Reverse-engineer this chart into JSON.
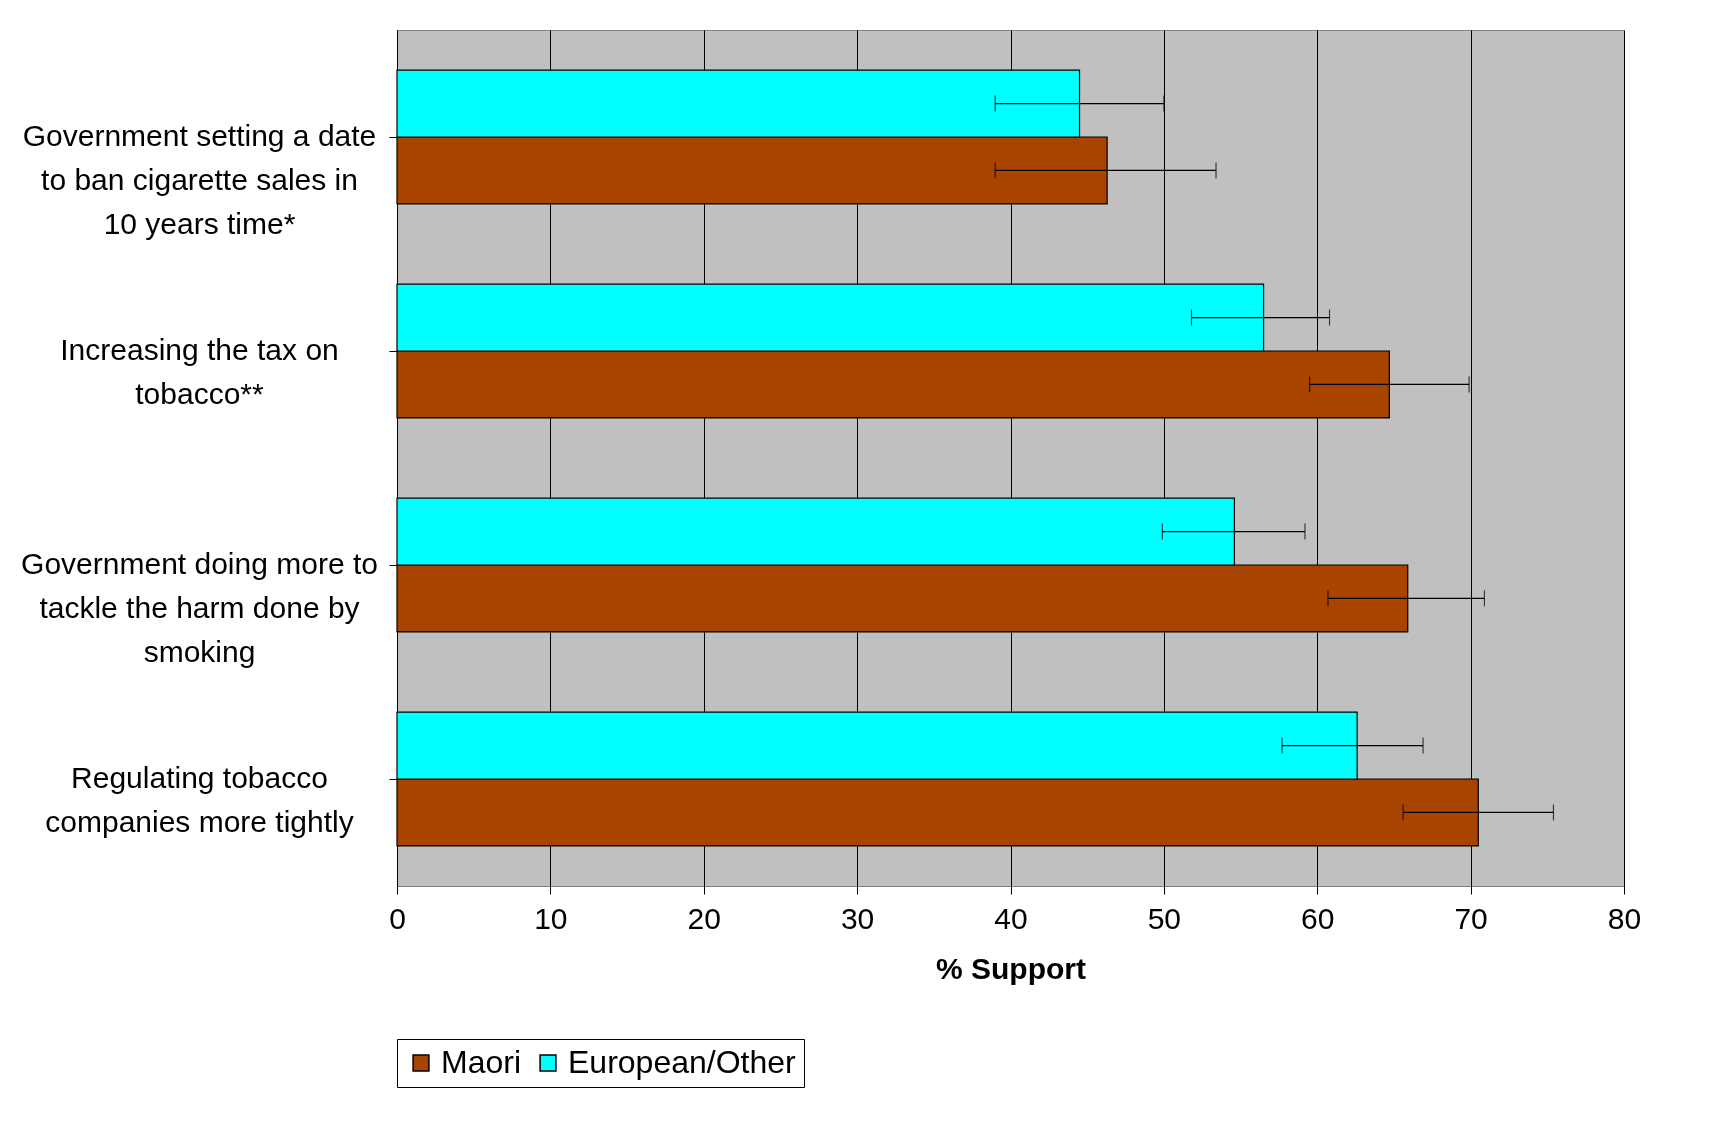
{
  "chart_data": {
    "type": "bar",
    "orientation": "horizontal",
    "xlabel": "% Support",
    "categories": [
      "Government setting a date to ban cigarette sales in 10 years time*",
      "Increasing the tax on tobacco**",
      "Government doing more to tackle the harm done by smoking",
      "Regulating tobacco companies more tightly"
    ],
    "series": [
      {
        "name": "Maori",
        "color": "#a94400",
        "values": [
          46.3,
          64.7,
          65.9,
          70.5
        ],
        "errors": [
          [
            39.0,
            53.4
          ],
          [
            59.5,
            69.9
          ],
          [
            60.7,
            70.9
          ],
          [
            65.6,
            75.4
          ]
        ]
      },
      {
        "name": "European/Other",
        "color": "#00ffff",
        "values": [
          44.5,
          56.5,
          54.6,
          62.6
        ],
        "errors": [
          [
            39.0,
            50.0
          ],
          [
            51.8,
            60.8
          ],
          [
            49.9,
            59.2
          ],
          [
            57.7,
            66.9
          ]
        ]
      }
    ],
    "xlim": [
      0,
      80
    ],
    "xticks": [
      0,
      10,
      20,
      30,
      40,
      50,
      60,
      70,
      80
    ],
    "grid": "x",
    "legend": "bottom"
  }
}
